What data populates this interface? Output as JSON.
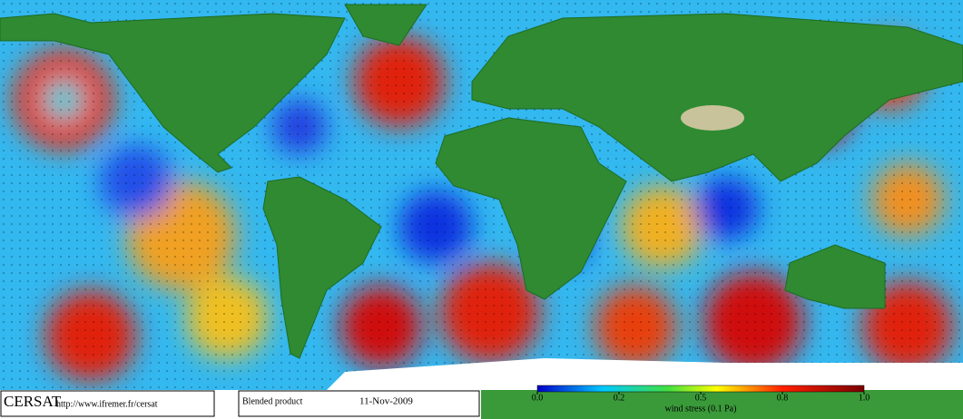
{
  "logo": "CERSAT",
  "url": "http://www.ifremer.fr/cersat",
  "product": "Blended product",
  "date": "11-Nov-2009",
  "colorbar": {
    "label": "wind stress (0.1 Pa)",
    "ticks": [
      {
        "value": 0,
        "label": "0.0"
      },
      0.2,
      0.5,
      0.8,
      {
        "value": 1,
        "label": "1.0"
      }
    ]
  }
}
